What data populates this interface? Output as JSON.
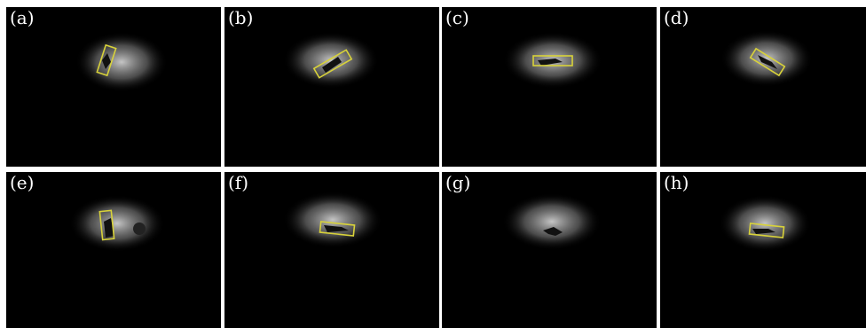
{
  "figure": {
    "panels": [
      {
        "label": "(a)",
        "has_box": true
      },
      {
        "label": "(b)",
        "has_box": true
      },
      {
        "label": "(c)",
        "has_box": true
      },
      {
        "label": "(d)",
        "has_box": true
      },
      {
        "label": "(e)",
        "has_box": true
      },
      {
        "label": "(f)",
        "has_box": true
      },
      {
        "label": "(g)",
        "has_box": false
      },
      {
        "label": "(h)",
        "has_box": true
      }
    ],
    "colors": {
      "background": "#000000",
      "box": "#d8d23a",
      "spot": "#bdbdbd",
      "label": "#ffffff"
    }
  }
}
